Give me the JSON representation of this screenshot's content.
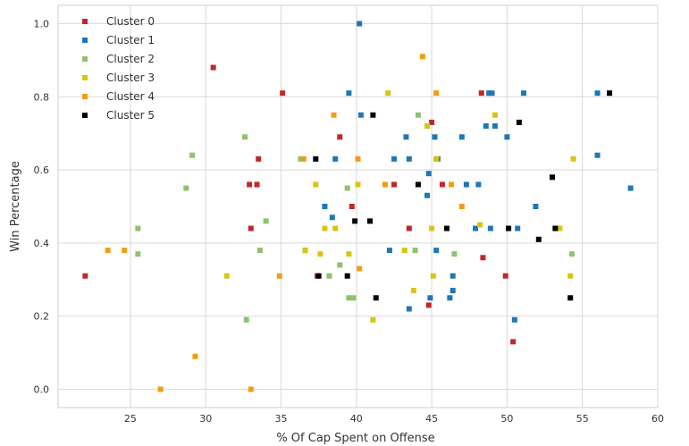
{
  "chart_data": {
    "type": "scatter",
    "title": "",
    "xlabel": "% Of Cap Spent on Offense",
    "ylabel": "Win Percentage",
    "xlim": [
      20.2,
      60
    ],
    "ylim": [
      -0.05,
      1.05
    ],
    "xticks": [
      25,
      30,
      35,
      40,
      45,
      50,
      55,
      60
    ],
    "yticks": [
      0.0,
      0.2,
      0.4,
      0.6,
      0.8,
      1.0
    ],
    "xtick_labels": [
      "25",
      "30",
      "35",
      "40",
      "45",
      "50",
      "55",
      "60"
    ],
    "ytick_labels": [
      "0.0",
      "0.2",
      "0.4",
      "0.6",
      "0.8",
      "1.0"
    ],
    "grid": true,
    "legend_position": "top-left",
    "series": [
      {
        "name": "Cluster 0",
        "color": "#C0282B",
        "points": [
          [
            22,
            0.31
          ],
          [
            30.5,
            0.88
          ],
          [
            32.9,
            0.56
          ],
          [
            33.0,
            0.44
          ],
          [
            33.4,
            0.56
          ],
          [
            33.5,
            0.63
          ],
          [
            35.1,
            0.81
          ],
          [
            37.4,
            0.31
          ],
          [
            38.9,
            0.69
          ],
          [
            39.7,
            0.5
          ],
          [
            42.5,
            0.56
          ],
          [
            43.5,
            0.44
          ],
          [
            44.8,
            0.23
          ],
          [
            45.0,
            0.73
          ],
          [
            45.7,
            0.56
          ],
          [
            48.3,
            0.81
          ],
          [
            48.4,
            0.36
          ],
          [
            49.9,
            0.31
          ],
          [
            50.4,
            0.13
          ]
        ]
      },
      {
        "name": "Cluster 1",
        "color": "#1F77B4",
        "points": [
          [
            36.6,
            0.38
          ],
          [
            37.9,
            0.5
          ],
          [
            38.4,
            0.47
          ],
          [
            38.6,
            0.63
          ],
          [
            39.5,
            0.81
          ],
          [
            40.2,
            1.0
          ],
          [
            40.3,
            0.75
          ],
          [
            42.2,
            0.38
          ],
          [
            42.5,
            0.63
          ],
          [
            43.3,
            0.69
          ],
          [
            43.5,
            0.22
          ],
          [
            43.5,
            0.63
          ],
          [
            44.7,
            0.53
          ],
          [
            44.8,
            0.59
          ],
          [
            44.9,
            0.25
          ],
          [
            45.2,
            0.69
          ],
          [
            45.3,
            0.38
          ],
          [
            45.4,
            0.63
          ],
          [
            46.2,
            0.25
          ],
          [
            46.4,
            0.31
          ],
          [
            46.4,
            0.27
          ],
          [
            47.0,
            0.69
          ],
          [
            47.3,
            0.56
          ],
          [
            47.9,
            0.44
          ],
          [
            48.1,
            0.56
          ],
          [
            48.6,
            0.72
          ],
          [
            48.8,
            0.81
          ],
          [
            48.9,
            0.44
          ],
          [
            49.0,
            0.81
          ],
          [
            49.2,
            0.72
          ],
          [
            50.0,
            0.69
          ],
          [
            50.5,
            0.19
          ],
          [
            50.7,
            0.44
          ],
          [
            51.1,
            0.81
          ],
          [
            51.9,
            0.5
          ],
          [
            56.0,
            0.81
          ],
          [
            56.0,
            0.64
          ],
          [
            58.2,
            0.55
          ]
        ]
      },
      {
        "name": "Cluster 2",
        "color": "#8DC26F",
        "points": [
          [
            25.5,
            0.44
          ],
          [
            25.5,
            0.37
          ],
          [
            28.7,
            0.55
          ],
          [
            29.1,
            0.64
          ],
          [
            32.6,
            0.69
          ],
          [
            32.7,
            0.19
          ],
          [
            33.6,
            0.38
          ],
          [
            34.0,
            0.46
          ],
          [
            36.3,
            0.63
          ],
          [
            38.2,
            0.31
          ],
          [
            38.9,
            0.34
          ],
          [
            39.4,
            0.55
          ],
          [
            39.5,
            0.25
          ],
          [
            39.8,
            0.25
          ],
          [
            43.9,
            0.38
          ],
          [
            44.1,
            0.75
          ],
          [
            45.3,
            0.63
          ],
          [
            46.5,
            0.37
          ],
          [
            54.3,
            0.37
          ]
        ]
      },
      {
        "name": "Cluster 3",
        "color": "#D8C50F",
        "points": [
          [
            31.4,
            0.31
          ],
          [
            36.6,
            0.38
          ],
          [
            37.3,
            0.56
          ],
          [
            37.6,
            0.37
          ],
          [
            37.9,
            0.44
          ],
          [
            38.6,
            0.44
          ],
          [
            39.5,
            0.37
          ],
          [
            40.1,
            0.56
          ],
          [
            41.1,
            0.19
          ],
          [
            42.1,
            0.81
          ],
          [
            43.2,
            0.38
          ],
          [
            43.8,
            0.27
          ],
          [
            44.7,
            0.72
          ],
          [
            45.0,
            0.44
          ],
          [
            45.1,
            0.31
          ],
          [
            45.3,
            0.63
          ],
          [
            48.2,
            0.45
          ],
          [
            49.2,
            0.75
          ],
          [
            53.5,
            0.44
          ],
          [
            54.2,
            0.31
          ],
          [
            54.4,
            0.63
          ]
        ]
      },
      {
        "name": "Cluster 4",
        "color": "#F39C12",
        "points": [
          [
            23.5,
            0.38
          ],
          [
            24.6,
            0.38
          ],
          [
            27.0,
            0.0
          ],
          [
            29.3,
            0.09
          ],
          [
            33.0,
            0.0
          ],
          [
            34.9,
            0.31
          ],
          [
            36.5,
            0.63
          ],
          [
            38.5,
            0.75
          ],
          [
            40.1,
            0.63
          ],
          [
            40.2,
            0.33
          ],
          [
            41.9,
            0.56
          ],
          [
            44.4,
            0.91
          ],
          [
            45.3,
            0.81
          ],
          [
            46.3,
            0.56
          ],
          [
            47.0,
            0.5
          ]
        ]
      },
      {
        "name": "Cluster 5",
        "color": "#000000",
        "points": [
          [
            37.3,
            0.63
          ],
          [
            37.5,
            0.31
          ],
          [
            39.4,
            0.31
          ],
          [
            39.9,
            0.46
          ],
          [
            40.9,
            0.46
          ],
          [
            41.1,
            0.75
          ],
          [
            41.3,
            0.25
          ],
          [
            44.1,
            0.56
          ],
          [
            46.0,
            0.44
          ],
          [
            50.1,
            0.44
          ],
          [
            50.8,
            0.73
          ],
          [
            52.1,
            0.41
          ],
          [
            53.0,
            0.58
          ],
          [
            53.2,
            0.44
          ],
          [
            54.2,
            0.25
          ],
          [
            56.8,
            0.81
          ]
        ]
      }
    ]
  }
}
